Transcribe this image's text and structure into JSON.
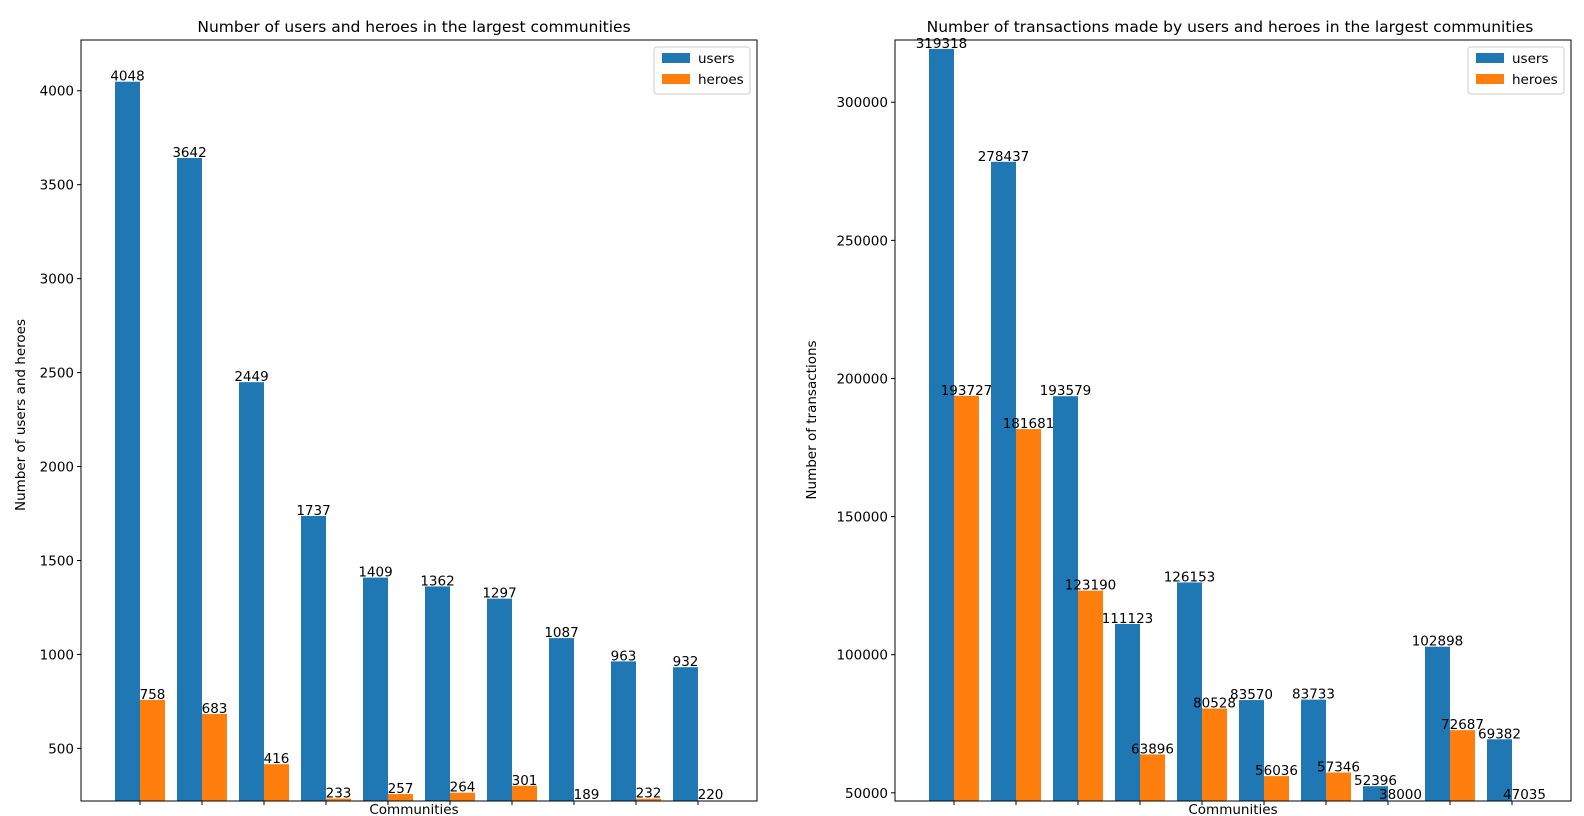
{
  "chart_data": [
    {
      "type": "bar",
      "title": "Number of users and heroes in the largest communities",
      "xlabel": "Communities",
      "ylabel": "Number of users and heroes",
      "ylim": [
        220,
        4270
      ],
      "yticks": [
        500,
        1000,
        1500,
        2000,
        2500,
        3000,
        3500,
        4000
      ],
      "legend_position": "top-right",
      "categories": [
        "",
        "",
        "",
        "",
        "",
        "",
        "",
        "",
        "",
        ""
      ],
      "series": [
        {
          "name": "users",
          "color": "#1f77b4",
          "values": [
            4048,
            3642,
            2449,
            1737,
            1409,
            1362,
            1297,
            1087,
            963,
            932
          ]
        },
        {
          "name": "heroes",
          "color": "#ff7f0e",
          "values": [
            758,
            683,
            416,
            233,
            257,
            264,
            301,
            189,
            232,
            220
          ]
        }
      ]
    },
    {
      "type": "bar",
      "title": "Number of transactions made by users and heroes in the largest communities",
      "xlabel": "Communities",
      "ylabel": "Number of transactions",
      "ylim": [
        47035,
        322532
      ],
      "yticks": [
        50000,
        100000,
        150000,
        200000,
        250000,
        300000
      ],
      "legend_position": "top-right",
      "categories": [
        "",
        "",
        "",
        "",
        "",
        "",
        "",
        "",
        "",
        ""
      ],
      "series": [
        {
          "name": "users",
          "color": "#1f77b4",
          "values": [
            319318,
            278437,
            193579,
            111123,
            126153,
            83570,
            83733,
            52396,
            102898,
            69382
          ]
        },
        {
          "name": "heroes",
          "color": "#ff7f0e",
          "values": [
            193727,
            181681,
            123190,
            63896,
            80528,
            56036,
            57346,
            38000,
            72687,
            47035
          ]
        }
      ]
    }
  ]
}
